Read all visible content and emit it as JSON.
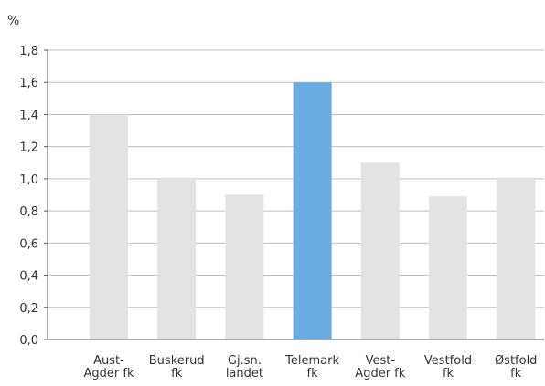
{
  "chart_data": {
    "type": "bar",
    "unit_label": "%",
    "categories": [
      [
        "Aust-",
        "Agder fk"
      ],
      [
        "Buskerud",
        "fk"
      ],
      [
        "Gj.sn.",
        "landet"
      ],
      [
        "Telemark",
        "fk"
      ],
      [
        "Vest-",
        "Agder fk"
      ],
      [
        "Vestfold",
        "fk"
      ],
      [
        "Østfold",
        "fk"
      ]
    ],
    "values": [
      1.4,
      1.0,
      0.9,
      1.6,
      1.1,
      0.89,
      1.0
    ],
    "highlight_index": 3,
    "colors": {
      "default_bar": "#e3e3e3",
      "highlight_bar": "#69ace1",
      "grid": "#bfbfbf",
      "axis": "#555555"
    },
    "yticks": [
      "0,0",
      "0,2",
      "0,4",
      "0,6",
      "0,8",
      "1,0",
      "1,2",
      "1,4",
      "1,6",
      "1,8"
    ],
    "ylim": [
      0,
      1.8
    ],
    "grid": true
  }
}
